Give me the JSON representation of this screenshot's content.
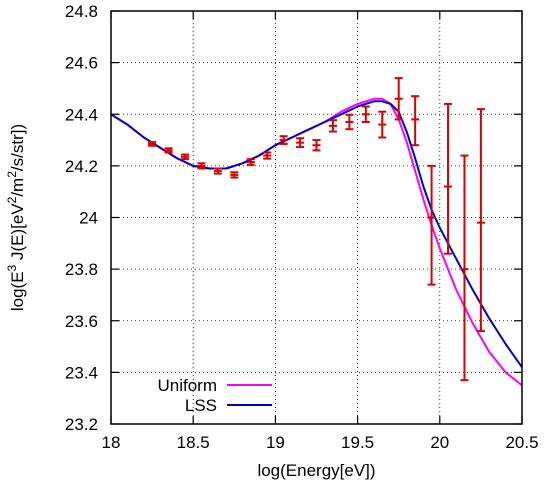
{
  "chart_data": {
    "type": "line",
    "xlabel": "log(Energy[eV])",
    "ylabel": {
      "segments": [
        {
          "t": "log(E"
        },
        {
          "t": "3",
          "sup": true
        },
        {
          "t": " J(E)[eV"
        },
        {
          "t": "2",
          "sup": true
        },
        {
          "t": "/m"
        },
        {
          "t": "2",
          "sup": true
        },
        {
          "t": "/s/str])"
        }
      ]
    },
    "xlim": [
      18,
      20.5
    ],
    "ylim": [
      23.2,
      24.8
    ],
    "xticks": [
      "18",
      "18.5",
      "19",
      "19.5",
      "20",
      "20.5"
    ],
    "xtick_values": [
      18,
      18.5,
      19,
      19.5,
      20,
      20.5
    ],
    "yticks": [
      "23.2",
      "23.4",
      "23.6",
      "23.8",
      "24",
      "24.2",
      "24.4",
      "24.6",
      "24.8"
    ],
    "ytick_values": [
      23.2,
      23.4,
      23.6,
      23.8,
      24.0,
      24.2,
      24.4,
      24.6,
      24.8
    ],
    "grid": true,
    "legend_position": "bottom-left",
    "series": [
      {
        "name": "Uniform",
        "color": "#ff00ff",
        "x": [
          18.0,
          18.1,
          18.2,
          18.3,
          18.4,
          18.5,
          18.6,
          18.7,
          18.8,
          18.9,
          19.0,
          19.1,
          19.2,
          19.3,
          19.4,
          19.5,
          19.6,
          19.65,
          19.7,
          19.75,
          19.8,
          19.85,
          19.9,
          19.95,
          20.0,
          20.1,
          20.2,
          20.3,
          20.4,
          20.5
        ],
        "y": [
          24.4,
          24.36,
          24.31,
          24.27,
          24.23,
          24.2,
          24.19,
          24.19,
          24.21,
          24.24,
          24.28,
          24.31,
          24.34,
          24.37,
          24.41,
          24.44,
          24.46,
          24.46,
          24.44,
          24.38,
          24.29,
          24.18,
          24.07,
          23.97,
          23.88,
          23.72,
          23.59,
          23.48,
          23.4,
          23.35
        ]
      },
      {
        "name": "LSS",
        "color": "#0000cc",
        "x": [
          18.0,
          18.1,
          18.2,
          18.3,
          18.4,
          18.5,
          18.6,
          18.7,
          18.8,
          18.9,
          19.0,
          19.1,
          19.2,
          19.3,
          19.4,
          19.5,
          19.6,
          19.65,
          19.7,
          19.75,
          19.8,
          19.85,
          19.9,
          19.95,
          20.0,
          20.1,
          20.2,
          20.3,
          20.4,
          20.5
        ],
        "y": [
          24.4,
          24.36,
          24.31,
          24.27,
          24.23,
          24.2,
          24.19,
          24.19,
          24.21,
          24.24,
          24.28,
          24.31,
          24.34,
          24.37,
          24.4,
          24.43,
          24.45,
          24.45,
          24.44,
          24.41,
          24.33,
          24.23,
          24.12,
          24.03,
          23.96,
          23.84,
          23.72,
          23.61,
          23.51,
          23.42
        ]
      }
    ],
    "data_points": {
      "color": "#dd0000",
      "points": [
        {
          "x": 18.25,
          "y": 24.285,
          "lo": 24.278,
          "hi": 24.292
        },
        {
          "x": 18.35,
          "y": 24.26,
          "lo": 24.252,
          "hi": 24.268
        },
        {
          "x": 18.45,
          "y": 24.235,
          "lo": 24.226,
          "hi": 24.244
        },
        {
          "x": 18.55,
          "y": 24.2,
          "lo": 24.19,
          "hi": 24.21
        },
        {
          "x": 18.65,
          "y": 24.18,
          "lo": 24.17,
          "hi": 24.19
        },
        {
          "x": 18.75,
          "y": 24.165,
          "lo": 24.155,
          "hi": 24.175
        },
        {
          "x": 18.85,
          "y": 24.215,
          "lo": 24.204,
          "hi": 24.226
        },
        {
          "x": 18.95,
          "y": 24.24,
          "lo": 24.228,
          "hi": 24.252
        },
        {
          "x": 19.05,
          "y": 24.3,
          "lo": 24.285,
          "hi": 24.315
        },
        {
          "x": 19.15,
          "y": 24.29,
          "lo": 24.273,
          "hi": 24.307
        },
        {
          "x": 19.25,
          "y": 24.28,
          "lo": 24.26,
          "hi": 24.3
        },
        {
          "x": 19.35,
          "y": 24.355,
          "lo": 24.333,
          "hi": 24.377
        },
        {
          "x": 19.45,
          "y": 24.37,
          "lo": 24.342,
          "hi": 24.398
        },
        {
          "x": 19.55,
          "y": 24.4,
          "lo": 24.37,
          "hi": 24.43
        },
        {
          "x": 19.65,
          "y": 24.36,
          "lo": 24.31,
          "hi": 24.41
        },
        {
          "x": 19.75,
          "y": 24.46,
          "lo": 24.38,
          "hi": 24.54
        },
        {
          "x": 19.85,
          "y": 24.38,
          "lo": 24.28,
          "hi": 24.47
        },
        {
          "x": 19.95,
          "y": 24.0,
          "lo": 23.74,
          "hi": 24.2
        },
        {
          "x": 20.05,
          "y": 24.12,
          "lo": 23.86,
          "hi": 24.44
        },
        {
          "x": 20.15,
          "y": 23.8,
          "lo": 23.37,
          "hi": 24.24
        },
        {
          "x": 20.25,
          "y": 23.98,
          "lo": 23.56,
          "hi": 24.42
        }
      ]
    }
  }
}
